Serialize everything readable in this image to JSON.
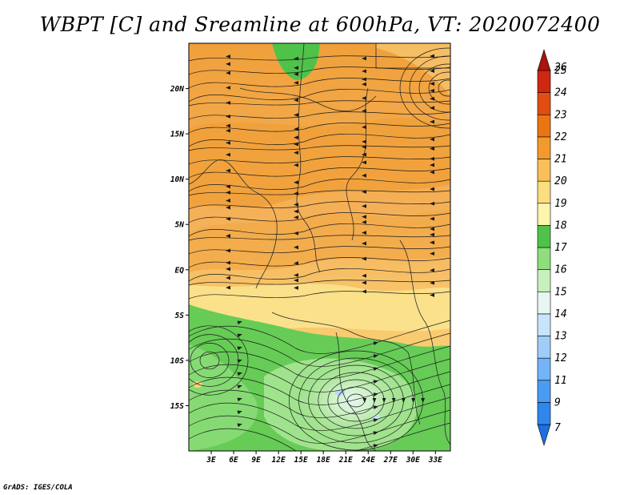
{
  "title": "WBPT [C] and Sreamline at 600hPa, VT: 2020072400",
  "credit": "GrADS: IGES/COLA",
  "map": {
    "lon_range": [
      0,
      35
    ],
    "lat_range": [
      -20,
      25
    ],
    "x_ticks": [
      {
        "lon": 3,
        "label": "3E"
      },
      {
        "lon": 6,
        "label": "6E"
      },
      {
        "lon": 9,
        "label": "9E"
      },
      {
        "lon": 12,
        "label": "12E"
      },
      {
        "lon": 15,
        "label": "15E"
      },
      {
        "lon": 18,
        "label": "18E"
      },
      {
        "lon": 21,
        "label": "21E"
      },
      {
        "lon": 24,
        "label": "24E"
      },
      {
        "lon": 27,
        "label": "27E"
      },
      {
        "lon": 30,
        "label": "30E"
      },
      {
        "lon": 33,
        "label": "33E"
      }
    ],
    "y_ticks": [
      {
        "lat": 20,
        "label": "20N"
      },
      {
        "lat": 15,
        "label": "15N"
      },
      {
        "lat": 10,
        "label": "10N"
      },
      {
        "lat": 5,
        "label": "5N"
      },
      {
        "lat": 0,
        "label": "EQ"
      },
      {
        "lat": -5,
        "label": "5S"
      },
      {
        "lat": -10,
        "label": "10S"
      },
      {
        "lat": -15,
        "label": "15S"
      }
    ]
  },
  "colorbar": {
    "levels": [
      {
        "label": "7",
        "color": "#1e6fe0"
      },
      {
        "label": "9",
        "color": "#2f86ec"
      },
      {
        "label": "11",
        "color": "#4a9cf2"
      },
      {
        "label": "12",
        "color": "#72b4f6"
      },
      {
        "label": "13",
        "color": "#9fcdfa"
      },
      {
        "label": "14",
        "color": "#c7e4fc"
      },
      {
        "label": "15",
        "color": "#e6f7f2"
      },
      {
        "label": "16",
        "color": "#c7f0bc"
      },
      {
        "label": "17",
        "color": "#8fdd7c"
      },
      {
        "label": "18",
        "color": "#4fc24a"
      },
      {
        "label": "19",
        "color": "#fdf4ae"
      },
      {
        "label": "20",
        "color": "#fcdd7f"
      },
      {
        "label": "21",
        "color": "#f8bf5a"
      },
      {
        "label": "22",
        "color": "#f29a2b"
      },
      {
        "label": "23",
        "color": "#ec7512"
      },
      {
        "label": "24",
        "color": "#e24e0f"
      },
      {
        "label": "25",
        "color": "#cf2810"
      },
      {
        "label": "26",
        "color": "#a9140c"
      }
    ]
  }
}
